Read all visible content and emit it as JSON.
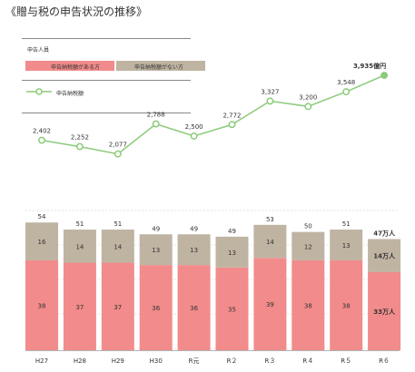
{
  "title": "《贈与税の申告状況の推移》",
  "legend": {
    "heading": "申告人員",
    "payable_label": "申告納税額がある方",
    "nonpayable_label": "申告納税額がない方",
    "line_label": "申告納税額"
  },
  "colors": {
    "payable": "#f28b8b",
    "nonpayable": "#bfb4a2",
    "line": "#8ccb7a",
    "grid": "#cccccc"
  },
  "chart_data": [
    {
      "type": "line",
      "series_name": "申告納税額",
      "categories": [
        "H27",
        "H28",
        "H29",
        "H30",
        "R元",
        "R２",
        "R３",
        "R４",
        "R５",
        "R６"
      ],
      "values": [
        2402,
        2252,
        2077,
        2788,
        2500,
        2772,
        3327,
        3200,
        3548,
        3935
      ],
      "value_labels": [
        "2,402",
        "2,252",
        "2,077",
        "2,788",
        "2,500",
        "2,772",
        "3,327",
        "3,200",
        "3,548",
        "3,935億円"
      ],
      "ylim": [
        1900,
        4000
      ]
    },
    {
      "type": "bar",
      "stacked": true,
      "categories": [
        "H27",
        "H28",
        "H29",
        "H30",
        "R元",
        "R２",
        "R３",
        "R４",
        "R５",
        "R６"
      ],
      "series": [
        {
          "name": "申告納税額がある方",
          "values": [
            38,
            37,
            37,
            36,
            36,
            35,
            39,
            38,
            38,
            33
          ],
          "labels": [
            "38",
            "37",
            "37",
            "36",
            "36",
            "35",
            "39",
            "38",
            "38",
            "33万人"
          ]
        },
        {
          "name": "申告納税額がない方",
          "values": [
            16,
            14,
            14,
            13,
            13,
            13,
            14,
            12,
            13,
            14
          ],
          "labels": [
            "16",
            "14",
            "14",
            "13",
            "13",
            "13",
            "14",
            "12",
            "13",
            "14万人"
          ]
        }
      ],
      "totals": [
        "54",
        "51",
        "51",
        "49",
        "49",
        "49",
        "53",
        "50",
        "51",
        "47万人"
      ],
      "ylim": [
        0,
        56
      ]
    }
  ]
}
